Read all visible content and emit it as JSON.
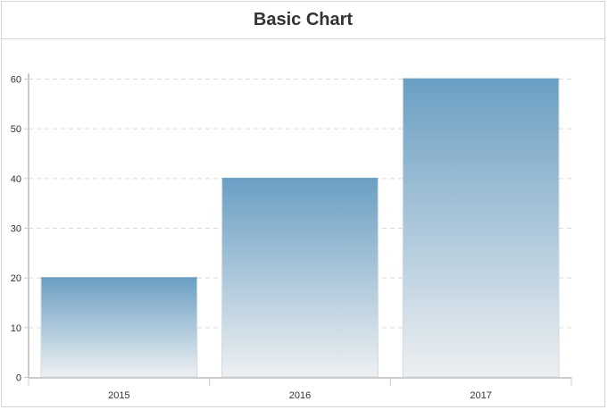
{
  "chart_data": {
    "type": "bar",
    "title": "Basic Chart",
    "xlabel": "",
    "ylabel": "",
    "categories": [
      "2015",
      "2016",
      "2017"
    ],
    "values": [
      20,
      40,
      60
    ],
    "ylim": [
      0,
      60
    ],
    "yticks": [
      0,
      10,
      20,
      30,
      40,
      50,
      60
    ],
    "grid": true,
    "legend": "none",
    "colors": {
      "bar_top": "#6a9fc3",
      "bar_bottom": "#eef0f2",
      "bar_border": "#cfd8df",
      "grid": "#d9d9d9",
      "axis": "#cccccc",
      "text": "#333333"
    }
  }
}
